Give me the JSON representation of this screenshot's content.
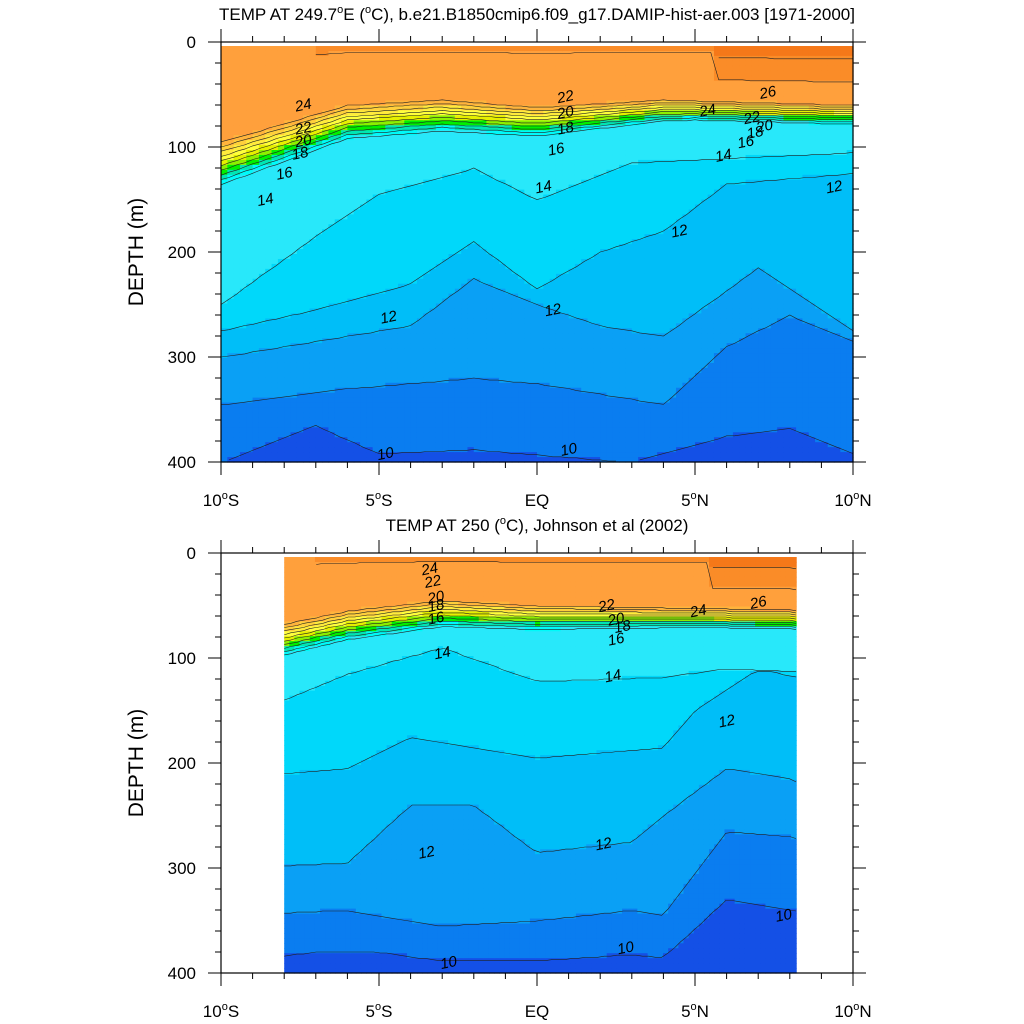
{
  "chart_data": [
    {
      "type": "heatmap",
      "title": "TEMP AT 249.7°E (°C), b.e21.B1850cmip6.f09_g17.DAMIP-hist-aer.003 [1971-2000]",
      "title_parts": {
        "pre": "TEMP AT 249.7",
        "deg1": "o",
        "mid": "E (",
        "deg2": "o",
        "post": "C), b.e21.B1850cmip6.f09_g17.DAMIP-hist-aer.003 [1971-2000]"
      },
      "xlabel": "",
      "ylabel": "DEPTH (m)",
      "x_range": [
        -10,
        10
      ],
      "y_range": [
        0,
        400
      ],
      "y_reversed": true,
      "x_ticks": [
        {
          "value": -10,
          "num": "10",
          "suffix": "S"
        },
        {
          "value": -5,
          "num": "5",
          "suffix": "S"
        },
        {
          "value": 0,
          "num": "EQ",
          "suffix": ""
        },
        {
          "value": 5,
          "num": "5",
          "suffix": "N"
        },
        {
          "value": 10,
          "num": "10",
          "suffix": "N"
        }
      ],
      "y_ticks": [
        0,
        100,
        200,
        300,
        400
      ],
      "data_extent": [
        -10,
        10
      ],
      "contour_labels": [
        {
          "x": -7.4,
          "y": 60,
          "text": "24"
        },
        {
          "x": -7.4,
          "y": 82,
          "text": "22"
        },
        {
          "x": -7.4,
          "y": 94,
          "text": "20"
        },
        {
          "x": -7.5,
          "y": 106,
          "text": "18"
        },
        {
          "x": -8.0,
          "y": 125,
          "text": "16"
        },
        {
          "x": -8.6,
          "y": 150,
          "text": "14"
        },
        {
          "x": -4.7,
          "y": 262,
          "text": "12"
        },
        {
          "x": -4.8,
          "y": 392,
          "text": "10"
        },
        {
          "x": 0.9,
          "y": 52,
          "text": "22"
        },
        {
          "x": 0.9,
          "y": 67,
          "text": "20"
        },
        {
          "x": 0.9,
          "y": 82,
          "text": "18"
        },
        {
          "x": 0.6,
          "y": 102,
          "text": "16"
        },
        {
          "x": 0.2,
          "y": 138,
          "text": "14"
        },
        {
          "x": 0.5,
          "y": 255,
          "text": "12"
        },
        {
          "x": 1.0,
          "y": 388,
          "text": "10"
        },
        {
          "x": 5.4,
          "y": 65,
          "text": "24"
        },
        {
          "x": 7.3,
          "y": 48,
          "text": "26"
        },
        {
          "x": 6.8,
          "y": 72,
          "text": "22"
        },
        {
          "x": 7.2,
          "y": 80,
          "text": "20"
        },
        {
          "x": 6.9,
          "y": 86,
          "text": "18"
        },
        {
          "x": 6.6,
          "y": 95,
          "text": "16"
        },
        {
          "x": 5.9,
          "y": 108,
          "text": "14"
        },
        {
          "x": 9.4,
          "y": 138,
          "text": "12"
        },
        {
          "x": 4.5,
          "y": 180,
          "text": "12"
        }
      ]
    },
    {
      "type": "heatmap",
      "title": "TEMP AT 250 (°C), Johnson et al (2002)",
      "title_parts": {
        "pre": "TEMP AT 250 (",
        "deg1": "o",
        "mid": "C), Johnson et al (2002)",
        "deg2": "",
        "post": ""
      },
      "xlabel": "",
      "ylabel": "DEPTH (m)",
      "x_range": [
        -10,
        10
      ],
      "y_range": [
        0,
        400
      ],
      "y_reversed": true,
      "x_ticks": [
        {
          "value": -10,
          "num": "10",
          "suffix": "S"
        },
        {
          "value": -5,
          "num": "5",
          "suffix": "S"
        },
        {
          "value": 0,
          "num": "EQ",
          "suffix": ""
        },
        {
          "value": 5,
          "num": "5",
          "suffix": "N"
        },
        {
          "value": 10,
          "num": "10",
          "suffix": "N"
        }
      ],
      "y_ticks": [
        0,
        100,
        200,
        300,
        400
      ],
      "data_extent": [
        -8,
        8.2
      ],
      "contour_labels": [
        {
          "x": -3.4,
          "y": 15,
          "text": "24"
        },
        {
          "x": -3.3,
          "y": 27,
          "text": "22"
        },
        {
          "x": -3.2,
          "y": 42,
          "text": "20"
        },
        {
          "x": -3.2,
          "y": 50,
          "text": "18"
        },
        {
          "x": -3.2,
          "y": 62,
          "text": "16"
        },
        {
          "x": -3.0,
          "y": 95,
          "text": "14"
        },
        {
          "x": -3.5,
          "y": 285,
          "text": "12"
        },
        {
          "x": -2.8,
          "y": 390,
          "text": "10"
        },
        {
          "x": 2.2,
          "y": 50,
          "text": "22"
        },
        {
          "x": 2.5,
          "y": 63,
          "text": "20"
        },
        {
          "x": 2.7,
          "y": 70,
          "text": "18"
        },
        {
          "x": 2.5,
          "y": 82,
          "text": "16"
        },
        {
          "x": 2.4,
          "y": 117,
          "text": "14"
        },
        {
          "x": 2.1,
          "y": 277,
          "text": "12"
        },
        {
          "x": 2.8,
          "y": 376,
          "text": "10"
        },
        {
          "x": 5.1,
          "y": 55,
          "text": "24"
        },
        {
          "x": 7.0,
          "y": 47,
          "text": "26"
        },
        {
          "x": 6.0,
          "y": 160,
          "text": "12"
        },
        {
          "x": 7.8,
          "y": 345,
          "text": "10"
        }
      ]
    }
  ]
}
